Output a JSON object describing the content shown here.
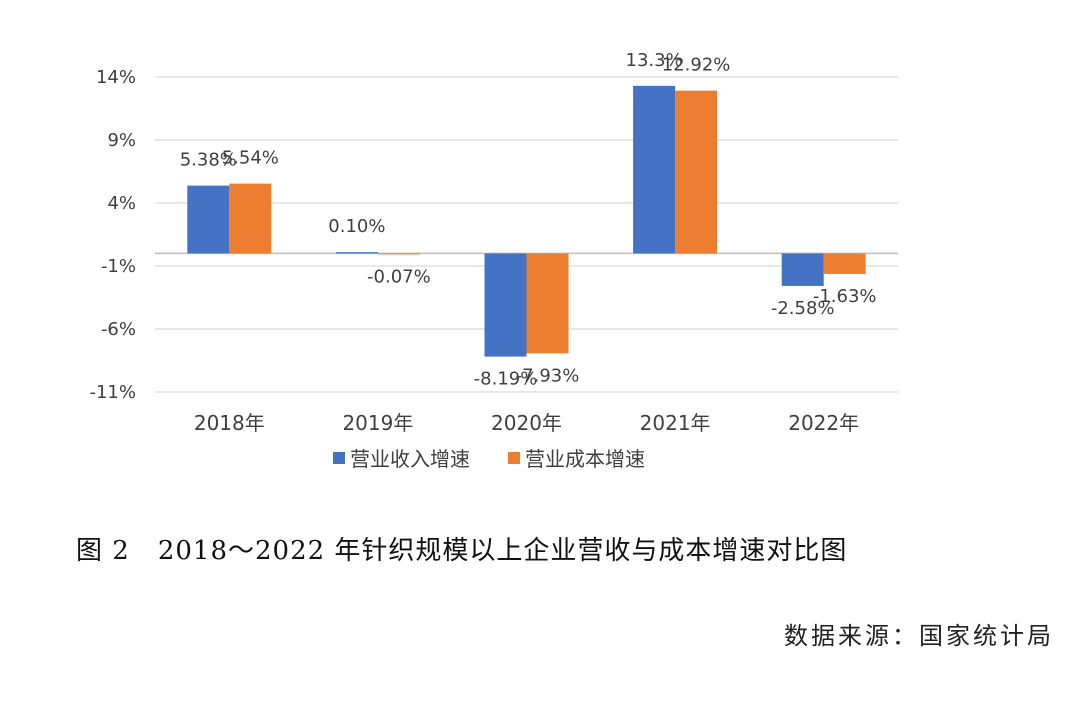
{
  "chart_data": {
    "type": "bar",
    "categories": [
      "2018年",
      "2019年",
      "2020年",
      "2021年",
      "2022年"
    ],
    "series": [
      {
        "name": "营业收入增速",
        "values": [
          5.38,
          0.1,
          -8.19,
          13.3,
          -2.58
        ],
        "labels": [
          "5.38%",
          "0.10%",
          "-8.19%",
          "13.3%",
          "-2.58%"
        ],
        "color": "#4472C4"
      },
      {
        "name": "营业成本增速",
        "values": [
          5.54,
          -0.07,
          -7.93,
          12.92,
          -1.63
        ],
        "labels": [
          "5.54%",
          "-0.07%",
          "-7.93%",
          "12.92%",
          "-1.63%"
        ],
        "color": "#ED7D31"
      }
    ],
    "yticks": [
      14,
      9,
      4,
      -1,
      -6,
      -11
    ],
    "ytick_labels": [
      "14%",
      "9%",
      "4%",
      "-1%",
      "-6%",
      "-11%"
    ],
    "ylim": [
      -11,
      14
    ],
    "grid": true,
    "legend": "bottom"
  },
  "caption": {
    "figure_number": "图 2",
    "title": "2018～2022 年针织规模以上企业营收与成本增速对比图"
  },
  "source": "数据来源：国家统计局"
}
